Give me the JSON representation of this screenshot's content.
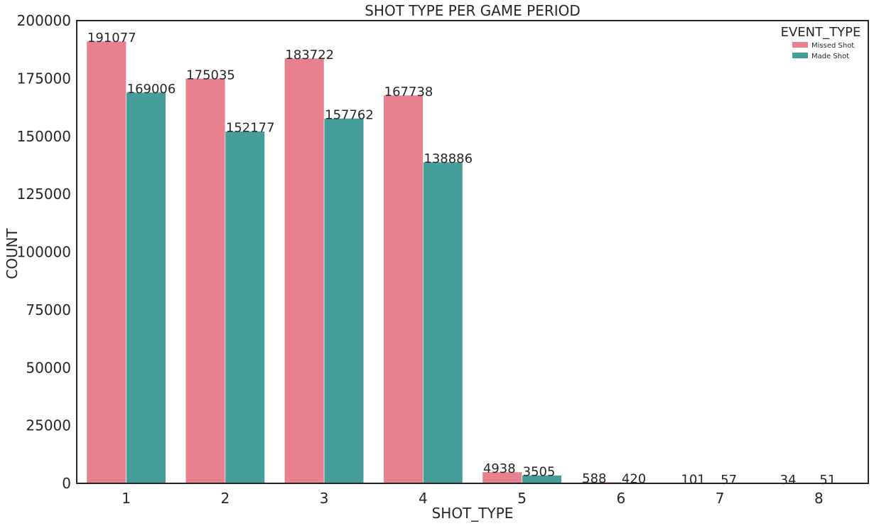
{
  "chart_data": {
    "type": "bar",
    "title": "SHOT TYPE PER GAME PERIOD",
    "xlabel": "SHOT_TYPE",
    "ylabel": "COUNT",
    "categories": [
      "1",
      "2",
      "3",
      "4",
      "5",
      "6",
      "7",
      "8"
    ],
    "series": [
      {
        "name": "Missed Shot",
        "color": "#e88090",
        "values": [
          191077,
          175035,
          183722,
          167738,
          4938,
          588,
          101,
          34
        ]
      },
      {
        "name": "Made Shot",
        "color": "#469e9a",
        "values": [
          169006,
          152177,
          157762,
          138886,
          3505,
          420,
          57,
          51
        ]
      }
    ],
    "ylim": [
      0,
      200000
    ],
    "yticks": [
      0,
      25000,
      50000,
      75000,
      100000,
      125000,
      150000,
      175000,
      200000
    ],
    "legend": {
      "title": "EVENT_TYPE",
      "position": "top-right"
    },
    "grid": false
  }
}
